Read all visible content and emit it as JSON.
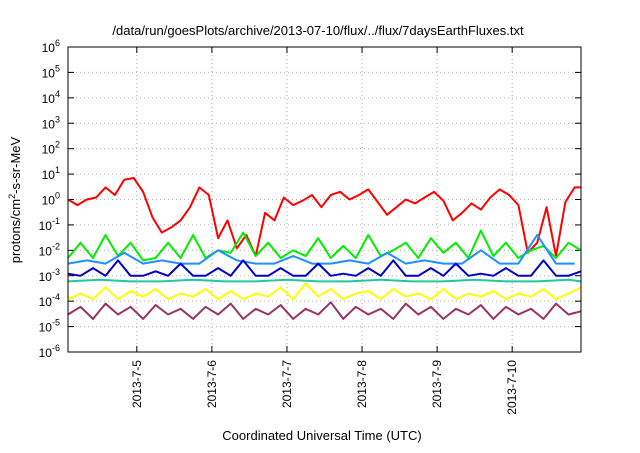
{
  "chart_data": {
    "type": "line",
    "title": "/data/run/goesPlots/archive/2013-07-10/flux/../flux/7daysEarthFluxes.txt",
    "xlabel": "Coordinated Universal Time (UTC)",
    "ylabel": "protons/cm2-s-sr-MeV",
    "ylabel_parts": {
      "base": "protons/cm",
      "sup": "2",
      "rest": "-s-sr-MeV"
    },
    "y_scale": "log",
    "ylim": [
      1e-06,
      1000000.0
    ],
    "y_ticks": [
      {
        "base": "10",
        "exp": "-6"
      },
      {
        "base": "10",
        "exp": "-5"
      },
      {
        "base": "10",
        "exp": "-4"
      },
      {
        "base": "10",
        "exp": "-3"
      },
      {
        "base": "10",
        "exp": "-2"
      },
      {
        "base": "10",
        "exp": "-1"
      },
      {
        "base": "10",
        "exp": "0"
      },
      {
        "base": "10",
        "exp": "1"
      },
      {
        "base": "10",
        "exp": "2"
      },
      {
        "base": "10",
        "exp": "3"
      },
      {
        "base": "10",
        "exp": "4"
      },
      {
        "base": "10",
        "exp": "5"
      },
      {
        "base": "10",
        "exp": "6"
      }
    ],
    "x_start": "2013-07-04 02:00",
    "x_end": "2013-07-10 22:00",
    "x_ticks": [
      "2013-7-5",
      "2013-7-6",
      "2013-7-7",
      "2013-7-8",
      "2013-7-9",
      "2013-7-10"
    ],
    "grid": true,
    "legend": "none",
    "series": [
      {
        "color": "#ff0000",
        "x": [
          "2013-07-04 02:00",
          "2013-07-04 05:00",
          "2013-07-04 08:00",
          "2013-07-04 11:00",
          "2013-07-04 14:00",
          "2013-07-04 17:00",
          "2013-07-04 20:00",
          "2013-07-04 23:00",
          "2013-07-05 02:00",
          "2013-07-05 05:00",
          "2013-07-05 08:00",
          "2013-07-05 11:00",
          "2013-07-05 14:00",
          "2013-07-05 17:00",
          "2013-07-05 20:00",
          "2013-07-05 23:00",
          "2013-07-06 02:00",
          "2013-07-06 05:00",
          "2013-07-06 08:00",
          "2013-07-06 11:00",
          "2013-07-06 14:00",
          "2013-07-06 17:00",
          "2013-07-06 20:00",
          "2013-07-06 23:00",
          "2013-07-07 02:00",
          "2013-07-07 05:00",
          "2013-07-07 08:00",
          "2013-07-07 11:00",
          "2013-07-07 14:00",
          "2013-07-07 17:00",
          "2013-07-07 20:00",
          "2013-07-07 23:00",
          "2013-07-08 02:00",
          "2013-07-08 05:00",
          "2013-07-08 08:00",
          "2013-07-08 11:00",
          "2013-07-08 14:00",
          "2013-07-08 17:00",
          "2013-07-08 20:00",
          "2013-07-08 23:00",
          "2013-07-09 02:00",
          "2013-07-09 05:00",
          "2013-07-09 08:00",
          "2013-07-09 11:00",
          "2013-07-09 14:00",
          "2013-07-09 17:00",
          "2013-07-09 20:00",
          "2013-07-09 23:00",
          "2013-07-10 02:00",
          "2013-07-10 05:00",
          "2013-07-10 08:00",
          "2013-07-10 11:00",
          "2013-07-10 14:00",
          "2013-07-10 17:00",
          "2013-07-10 20:00",
          "2013-07-10 22:00"
        ],
        "y": [
          1.0,
          0.6,
          1.0,
          1.2,
          3.0,
          1.5,
          6.0,
          7.0,
          2.0,
          0.2,
          0.05,
          0.08,
          0.15,
          0.5,
          3.0,
          1.5,
          0.03,
          0.15,
          0.012,
          0.04,
          0.006,
          0.3,
          0.15,
          1.2,
          0.6,
          0.9,
          1.5,
          0.5,
          1.5,
          2.0,
          1.0,
          1.5,
          2.5,
          0.8,
          0.25,
          0.5,
          1.0,
          0.7,
          1.2,
          2.0,
          0.9,
          0.15,
          0.3,
          0.7,
          0.4,
          1.2,
          2.5,
          1.5,
          0.6,
          0.008,
          0.02,
          0.5,
          0.006,
          0.8,
          3.0,
          3.0
        ]
      },
      {
        "color": "#00ee00",
        "x": [
          "2013-07-04 02:00",
          "2013-07-04 06:00",
          "2013-07-04 10:00",
          "2013-07-04 14:00",
          "2013-07-04 18:00",
          "2013-07-04 22:00",
          "2013-07-05 02:00",
          "2013-07-05 06:00",
          "2013-07-05 10:00",
          "2013-07-05 14:00",
          "2013-07-05 18:00",
          "2013-07-05 22:00",
          "2013-07-06 02:00",
          "2013-07-06 06:00",
          "2013-07-06 10:00",
          "2013-07-06 14:00",
          "2013-07-06 18:00",
          "2013-07-06 22:00",
          "2013-07-07 02:00",
          "2013-07-07 06:00",
          "2013-07-07 10:00",
          "2013-07-07 14:00",
          "2013-07-07 18:00",
          "2013-07-07 22:00",
          "2013-07-08 02:00",
          "2013-07-08 06:00",
          "2013-07-08 10:00",
          "2013-07-08 14:00",
          "2013-07-08 18:00",
          "2013-07-08 22:00",
          "2013-07-09 02:00",
          "2013-07-09 06:00",
          "2013-07-09 10:00",
          "2013-07-09 14:00",
          "2013-07-09 18:00",
          "2013-07-09 22:00",
          "2013-07-10 02:00",
          "2013-07-10 06:00",
          "2013-07-10 10:00",
          "2013-07-10 14:00",
          "2013-07-10 18:00",
          "2013-07-10 22:00"
        ],
        "y": [
          0.005,
          0.02,
          0.005,
          0.04,
          0.006,
          0.02,
          0.004,
          0.005,
          0.02,
          0.005,
          0.04,
          0.005,
          0.01,
          0.008,
          0.05,
          0.006,
          0.02,
          0.005,
          0.01,
          0.006,
          0.03,
          0.005,
          0.015,
          0.005,
          0.04,
          0.006,
          0.01,
          0.02,
          0.005,
          0.03,
          0.008,
          0.02,
          0.005,
          0.06,
          0.006,
          0.02,
          0.005,
          0.01,
          0.015,
          0.005,
          0.02,
          0.01
        ]
      },
      {
        "color": "#1e90ff",
        "x": [
          "2013-07-04 02:00",
          "2013-07-04 08:00",
          "2013-07-04 14:00",
          "2013-07-04 20:00",
          "2013-07-05 02:00",
          "2013-07-05 08:00",
          "2013-07-05 14:00",
          "2013-07-05 20:00",
          "2013-07-06 02:00",
          "2013-07-06 08:00",
          "2013-07-06 14:00",
          "2013-07-06 20:00",
          "2013-07-07 02:00",
          "2013-07-07 08:00",
          "2013-07-07 14:00",
          "2013-07-07 20:00",
          "2013-07-08 02:00",
          "2013-07-08 08:00",
          "2013-07-08 14:00",
          "2013-07-08 20:00",
          "2013-07-09 02:00",
          "2013-07-09 08:00",
          "2013-07-09 14:00",
          "2013-07-09 20:00",
          "2013-07-10 02:00",
          "2013-07-10 08:00",
          "2013-07-10 14:00",
          "2013-07-10 20:00"
        ],
        "y": [
          0.003,
          0.004,
          0.003,
          0.008,
          0.003,
          0.004,
          0.003,
          0.003,
          0.01,
          0.004,
          0.003,
          0.003,
          0.006,
          0.003,
          0.003,
          0.004,
          0.003,
          0.008,
          0.003,
          0.004,
          0.003,
          0.003,
          0.01,
          0.003,
          0.003,
          0.04,
          0.003,
          0.003
        ]
      },
      {
        "color": "#0000cc",
        "x": [
          "2013-07-04 02:00",
          "2013-07-04 06:00",
          "2013-07-04 10:00",
          "2013-07-04 14:00",
          "2013-07-04 18:00",
          "2013-07-04 22:00",
          "2013-07-05 02:00",
          "2013-07-05 06:00",
          "2013-07-05 10:00",
          "2013-07-05 14:00",
          "2013-07-05 18:00",
          "2013-07-05 22:00",
          "2013-07-06 02:00",
          "2013-07-06 06:00",
          "2013-07-06 10:00",
          "2013-07-06 14:00",
          "2013-07-06 18:00",
          "2013-07-06 22:00",
          "2013-07-07 02:00",
          "2013-07-07 06:00",
          "2013-07-07 10:00",
          "2013-07-07 14:00",
          "2013-07-07 18:00",
          "2013-07-07 22:00",
          "2013-07-08 02:00",
          "2013-07-08 06:00",
          "2013-07-08 10:00",
          "2013-07-08 14:00",
          "2013-07-08 18:00",
          "2013-07-08 22:00",
          "2013-07-09 02:00",
          "2013-07-09 06:00",
          "2013-07-09 10:00",
          "2013-07-09 14:00",
          "2013-07-09 18:00",
          "2013-07-09 22:00",
          "2013-07-10 02:00",
          "2013-07-10 06:00",
          "2013-07-10 10:00",
          "2013-07-10 14:00",
          "2013-07-10 18:00",
          "2013-07-10 22:00"
        ],
        "y": [
          0.0012,
          0.001,
          0.002,
          0.001,
          0.004,
          0.001,
          0.001,
          0.0015,
          0.001,
          0.003,
          0.001,
          0.001,
          0.002,
          0.001,
          0.004,
          0.001,
          0.001,
          0.002,
          0.001,
          0.001,
          0.003,
          0.001,
          0.0012,
          0.001,
          0.002,
          0.001,
          0.004,
          0.001,
          0.001,
          0.002,
          0.001,
          0.003,
          0.001,
          0.0012,
          0.001,
          0.002,
          0.001,
          0.001,
          0.004,
          0.001,
          0.001,
          0.0015
        ]
      },
      {
        "color": "#20c8a0",
        "x": [
          "2013-07-04 02:00",
          "2013-07-04 12:00",
          "2013-07-04 22:00",
          "2013-07-05 08:00",
          "2013-07-05 18:00",
          "2013-07-06 04:00",
          "2013-07-06 14:00",
          "2013-07-07 00:00",
          "2013-07-07 10:00",
          "2013-07-07 20:00",
          "2013-07-08 06:00",
          "2013-07-08 16:00",
          "2013-07-09 02:00",
          "2013-07-09 12:00",
          "2013-07-09 22:00",
          "2013-07-10 08:00",
          "2013-07-10 18:00",
          "2013-07-10 22:00"
        ],
        "y": [
          0.0006,
          0.0007,
          0.0006,
          0.0006,
          0.0007,
          0.0006,
          0.0006,
          0.0007,
          0.0006,
          0.0006,
          0.0007,
          0.0006,
          0.0006,
          0.0007,
          0.0006,
          0.0006,
          0.0007,
          0.0006
        ]
      },
      {
        "color": "#ffff00",
        "x": [
          "2013-07-04 02:00",
          "2013-07-04 06:00",
          "2013-07-04 10:00",
          "2013-07-04 14:00",
          "2013-07-04 18:00",
          "2013-07-04 22:00",
          "2013-07-05 02:00",
          "2013-07-05 06:00",
          "2013-07-05 10:00",
          "2013-07-05 14:00",
          "2013-07-05 18:00",
          "2013-07-05 22:00",
          "2013-07-06 02:00",
          "2013-07-06 06:00",
          "2013-07-06 10:00",
          "2013-07-06 14:00",
          "2013-07-06 18:00",
          "2013-07-06 22:00",
          "2013-07-07 02:00",
          "2013-07-07 06:00",
          "2013-07-07 10:00",
          "2013-07-07 14:00",
          "2013-07-07 18:00",
          "2013-07-07 22:00",
          "2013-07-08 02:00",
          "2013-07-08 06:00",
          "2013-07-08 10:00",
          "2013-07-08 14:00",
          "2013-07-08 18:00",
          "2013-07-08 22:00",
          "2013-07-09 02:00",
          "2013-07-09 06:00",
          "2013-07-09 10:00",
          "2013-07-09 14:00",
          "2013-07-09 18:00",
          "2013-07-09 22:00",
          "2013-07-10 02:00",
          "2013-07-10 06:00",
          "2013-07-10 10:00",
          "2013-07-10 14:00",
          "2013-07-10 18:00",
          "2013-07-10 22:00"
        ],
        "y": [
          0.00012,
          0.0002,
          0.00012,
          0.00035,
          0.00012,
          0.00025,
          0.00015,
          0.0003,
          0.00012,
          0.0002,
          0.00015,
          0.0003,
          0.00012,
          0.00025,
          0.00012,
          0.0002,
          0.00015,
          0.00035,
          0.00012,
          0.0005,
          0.00015,
          0.0003,
          0.00012,
          0.0002,
          0.00025,
          0.00012,
          0.0003,
          0.00015,
          0.0002,
          0.00012,
          0.0003,
          0.00012,
          0.0002,
          0.00015,
          0.00025,
          0.00012,
          0.0002,
          0.00015,
          0.0003,
          0.00012,
          0.0002,
          0.00035
        ]
      },
      {
        "color": "#993366",
        "x": [
          "2013-07-04 02:00",
          "2013-07-04 06:00",
          "2013-07-04 10:00",
          "2013-07-04 14:00",
          "2013-07-04 18:00",
          "2013-07-04 22:00",
          "2013-07-05 02:00",
          "2013-07-05 06:00",
          "2013-07-05 10:00",
          "2013-07-05 14:00",
          "2013-07-05 18:00",
          "2013-07-05 22:00",
          "2013-07-06 02:00",
          "2013-07-06 06:00",
          "2013-07-06 10:00",
          "2013-07-06 14:00",
          "2013-07-06 18:00",
          "2013-07-06 22:00",
          "2013-07-07 02:00",
          "2013-07-07 06:00",
          "2013-07-07 10:00",
          "2013-07-07 14:00",
          "2013-07-07 18:00",
          "2013-07-07 22:00",
          "2013-07-08 02:00",
          "2013-07-08 06:00",
          "2013-07-08 10:00",
          "2013-07-08 14:00",
          "2013-07-08 18:00",
          "2013-07-08 22:00",
          "2013-07-09 02:00",
          "2013-07-09 06:00",
          "2013-07-09 10:00",
          "2013-07-09 14:00",
          "2013-07-09 18:00",
          "2013-07-09 22:00",
          "2013-07-10 02:00",
          "2013-07-10 06:00",
          "2013-07-10 10:00",
          "2013-07-10 14:00",
          "2013-07-10 18:00",
          "2013-07-10 22:00"
        ],
        "y": [
          3e-05,
          6e-05,
          2e-05,
          8e-05,
          3e-05,
          6e-05,
          2e-05,
          7e-05,
          3e-05,
          5e-05,
          2e-05,
          6e-05,
          3e-05,
          8e-05,
          2e-05,
          5e-05,
          3e-05,
          7e-05,
          2e-05,
          5e-05,
          3e-05,
          9e-05,
          2e-05,
          6e-05,
          3e-05,
          5e-05,
          2e-05,
          8e-05,
          3e-05,
          6e-05,
          2e-05,
          5e-05,
          3e-05,
          7e-05,
          2e-05,
          6e-05,
          3e-05,
          5e-05,
          2e-05,
          8e-05,
          3e-05,
          4e-05
        ]
      }
    ]
  }
}
